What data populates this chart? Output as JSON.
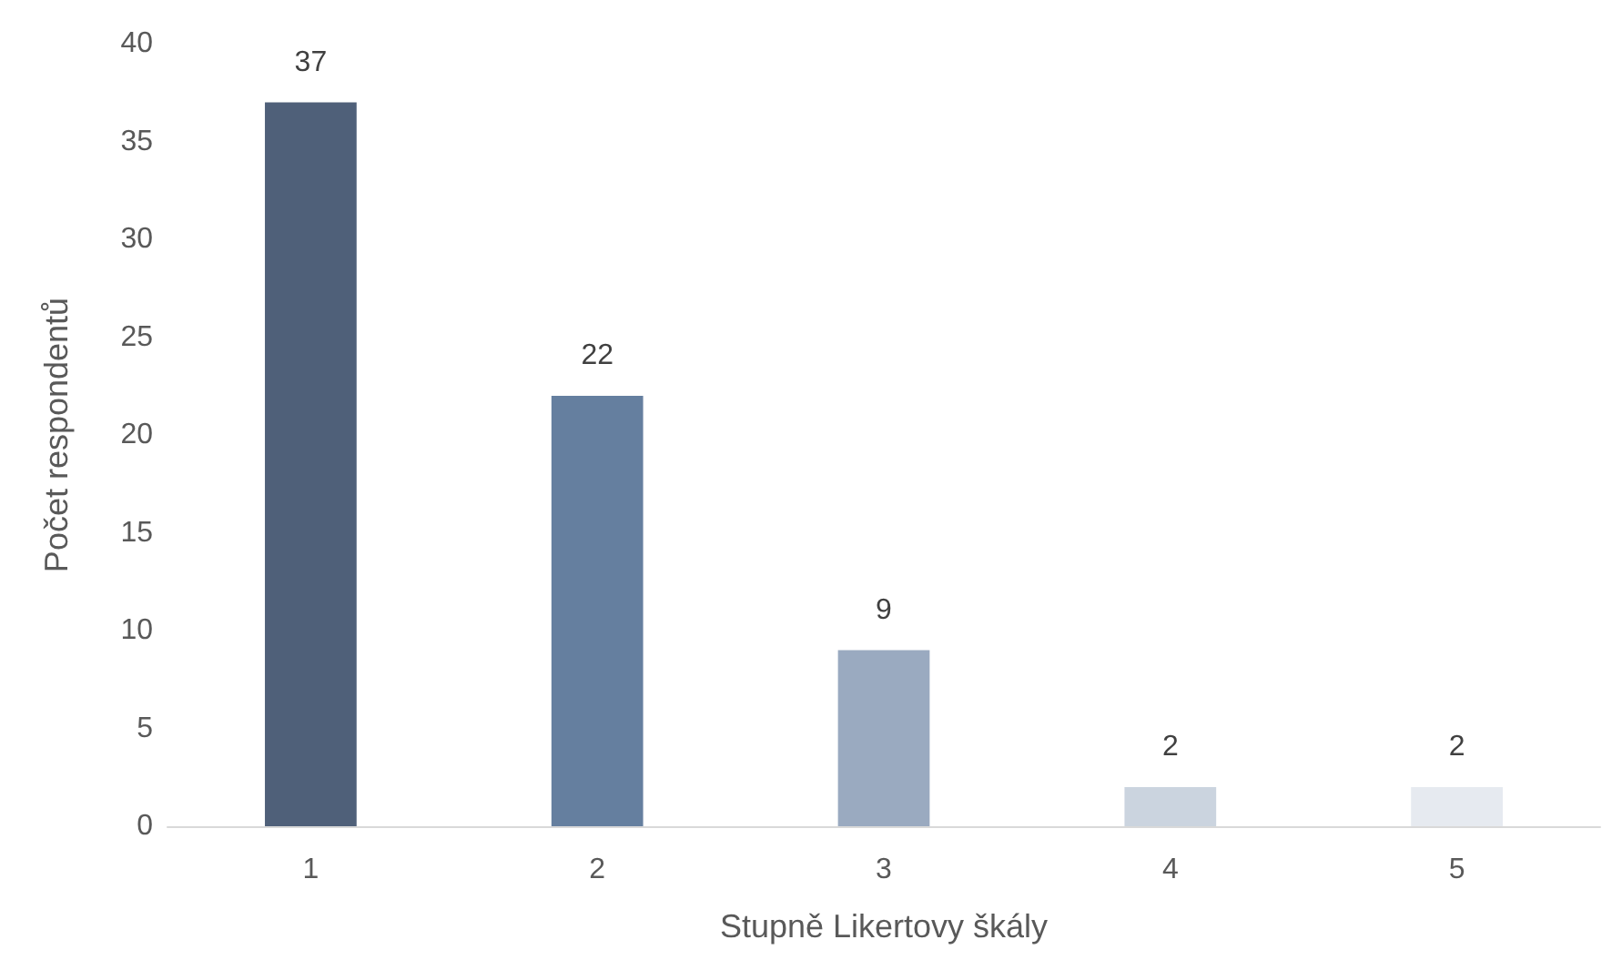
{
  "chart_data": {
    "type": "bar",
    "xlabel": "Stupně Likertovy škály",
    "ylabel": "Počet respondentů",
    "categories": [
      "1",
      "2",
      "3",
      "4",
      "5"
    ],
    "values": [
      37,
      22,
      9,
      2,
      2
    ],
    "colors": [
      "#4f6079",
      "#657f9f",
      "#9aaac0",
      "#cbd4df",
      "#e6eaf0"
    ],
    "ylim": [
      0,
      40
    ],
    "yticks": [
      0,
      5,
      10,
      15,
      20,
      25,
      30,
      35,
      40
    ],
    "grid": false,
    "data_labels": true
  }
}
